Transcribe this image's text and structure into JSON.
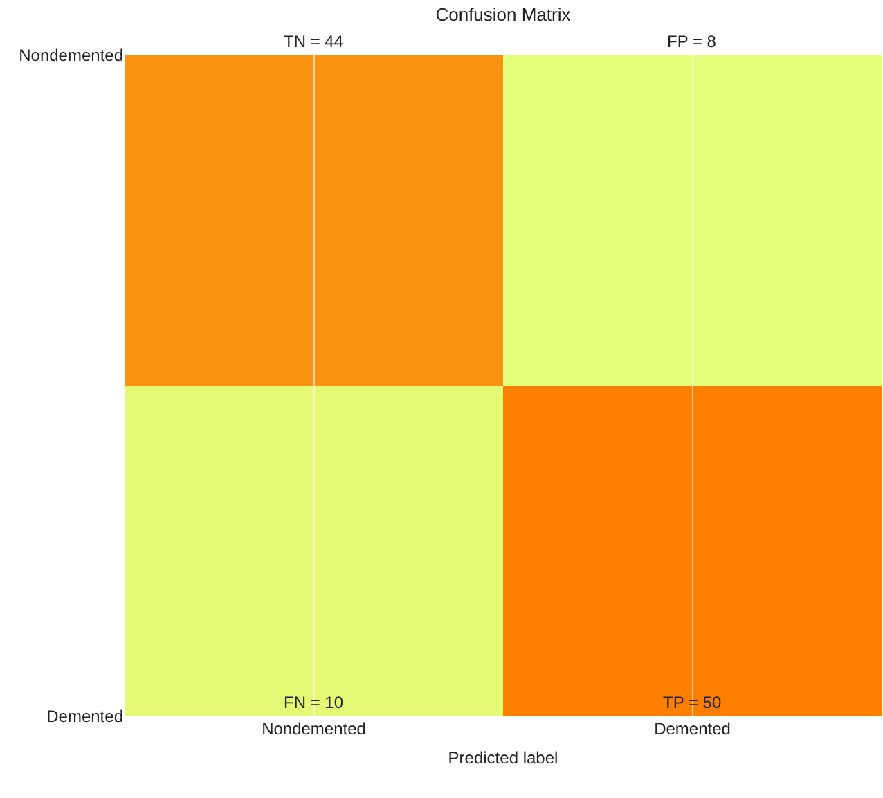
{
  "chart_data": {
    "type": "heatmap",
    "title": "Confusion Matrix",
    "xlabel": "Predicted label",
    "categories": [
      "Nondemented",
      "Demented"
    ],
    "y_categories": [
      "Nondemented",
      "Demented"
    ],
    "cells": [
      [
        44,
        8
      ],
      [
        10,
        50
      ]
    ],
    "cell_labels": [
      [
        "TN = 44",
        "FP = 8"
      ],
      [
        "FN = 10",
        "TP = 50"
      ]
    ],
    "colors": [
      "#e4ff7a",
      "#fc7f00"
    ],
    "grid": "x"
  }
}
